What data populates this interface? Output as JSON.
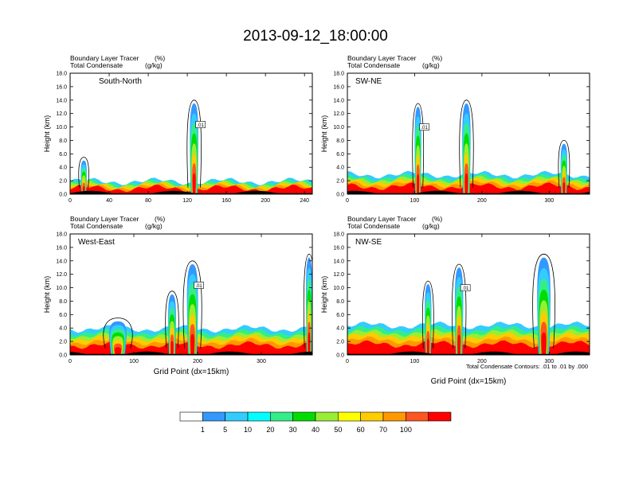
{
  "title": "2013-09-12_18:00:00",
  "chart_data": {
    "type": "heatmap",
    "panels": [
      {
        "id": "south-north",
        "label": "South-North",
        "header_left": [
          "Boundary Layer Tracer",
          "Total Condensate"
        ],
        "header_units": [
          "(%)",
          "(g/kg)"
        ],
        "ylabel": "Height (km)",
        "xlabel": "",
        "xlim": [
          0,
          248
        ],
        "ylim": [
          0,
          18
        ],
        "xticks": [
          "0",
          "40",
          "80",
          "120",
          "160",
          "200",
          "240"
        ],
        "yticks": [
          "0.0",
          "2.0",
          "4.0",
          "6.0",
          "8.0",
          "10.0",
          "12.0",
          "14.0",
          "16.0",
          "18.0"
        ],
        "contour_label": ".01",
        "towers": [
          {
            "x": 127,
            "width": 7,
            "top_km": 13.5
          },
          {
            "x": 14,
            "width": 5,
            "top_km": 5
          }
        ],
        "layer_top_km": 1.5
      },
      {
        "id": "sw-ne",
        "label": "SW-NE",
        "header_left": [
          "Boundary Layer Tracer",
          "Total Condensate"
        ],
        "header_units": [
          "(%)",
          "(g/kg)"
        ],
        "ylabel": "Height (km)",
        "xlabel": "",
        "xlim": [
          0,
          360
        ],
        "ylim": [
          0,
          18
        ],
        "xticks": [
          "0",
          "100",
          "200",
          "300"
        ],
        "yticks": [
          "0.0",
          "2.0",
          "4.0",
          "6.0",
          "8.0",
          "10.0",
          "12.0",
          "14.0",
          "16.0",
          "18.0"
        ],
        "contour_label": ".01",
        "towers": [
          {
            "x": 105,
            "width": 8,
            "top_km": 13
          },
          {
            "x": 177,
            "width": 10,
            "top_km": 13.5
          },
          {
            "x": 322,
            "width": 8,
            "top_km": 7.5
          }
        ],
        "layer_top_km": 2.5
      },
      {
        "id": "west-east",
        "label": "West-East",
        "header_left": [
          "Boundary Layer Tracer",
          "Total Condensate"
        ],
        "header_units": [
          "(%)",
          "(g/kg)"
        ],
        "ylabel": "Height (km)",
        "xlabel": "Grid Point (dx=15km)",
        "xlim": [
          0,
          380
        ],
        "ylim": [
          0,
          18
        ],
        "xticks": [
          "0",
          "100",
          "200",
          "300"
        ],
        "yticks": [
          "0.0",
          "2.0",
          "4.0",
          "6.0",
          "8.0",
          "10.0",
          "12.0",
          "14.0",
          "16.0",
          "18.0"
        ],
        "contour_label": ".01",
        "towers": [
          {
            "x": 192,
            "width": 14,
            "top_km": 13.5
          },
          {
            "x": 75,
            "width": 22,
            "top_km": 5
          },
          {
            "x": 160,
            "width": 10,
            "top_km": 9
          },
          {
            "x": 375,
            "width": 8,
            "top_km": 14.5
          }
        ],
        "layer_top_km": 3.5
      },
      {
        "id": "nw-se",
        "label": "NW-SE",
        "header_left": [
          "Boundary Layer Tracer",
          "Total Condensate"
        ],
        "header_units": [
          "(%)",
          "(g/kg)"
        ],
        "ylabel": "Height (km)",
        "xlabel": "Grid Point (dx=15km)",
        "xlim": [
          0,
          360
        ],
        "ylim": [
          0,
          18
        ],
        "xticks": [
          "0",
          "100",
          "200",
          "300"
        ],
        "yticks": [
          "0.0",
          "2.0",
          "4.0",
          "6.0",
          "8.0",
          "10.0",
          "12.0",
          "14.0",
          "16.0",
          "18.0"
        ],
        "contour_label": ".01",
        "towers": [
          {
            "x": 166,
            "width": 10,
            "top_km": 13
          },
          {
            "x": 292,
            "width": 16,
            "top_km": 14.5
          },
          {
            "x": 120,
            "width": 8,
            "top_km": 10.5
          }
        ],
        "layer_top_km": 4
      }
    ],
    "footnote": "Total Condensate Contours: .01 to .01 by .000",
    "colorbar": {
      "labels": [
        "1",
        "5",
        "10",
        "20",
        "30",
        "40",
        "50",
        "60",
        "70",
        "100"
      ],
      "colors": [
        "#ffffff",
        "#3399ff",
        "#33ccff",
        "#00ffff",
        "#33ee88",
        "#00dd00",
        "#99ee33",
        "#ffff00",
        "#ffcc00",
        "#ff9900",
        "#ff5522",
        "#ff0000"
      ]
    }
  }
}
